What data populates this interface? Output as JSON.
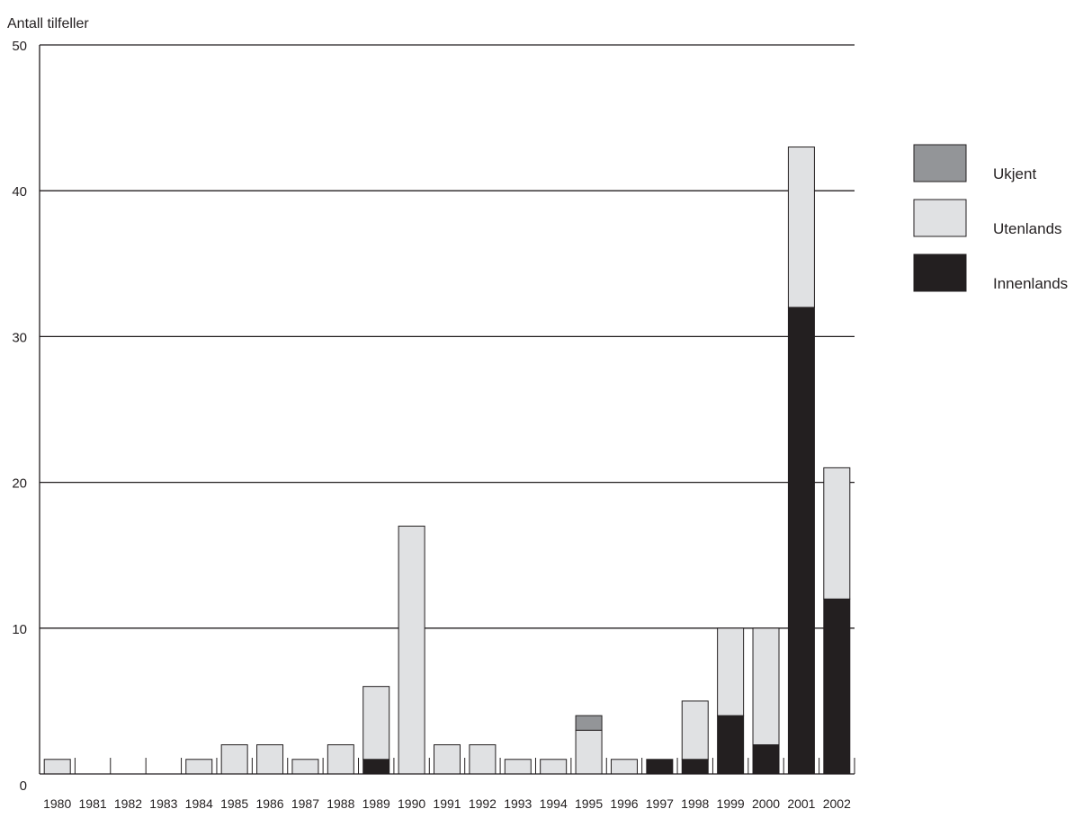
{
  "chart_data": {
    "type": "bar",
    "stacked": true,
    "ylabel": "Antall tilfeller",
    "ylim": [
      0,
      50
    ],
    "yticks": [
      0,
      10,
      20,
      30,
      40,
      50
    ],
    "grid": true,
    "legend_position": "right",
    "categories": [
      "1980",
      "1981",
      "1982",
      "1983",
      "1984",
      "1985",
      "1986",
      "1987",
      "1988",
      "1989",
      "1990",
      "1991",
      "1992",
      "1993",
      "1994",
      "1995",
      "1996",
      "1997",
      "1998",
      "1999",
      "2000",
      "2001",
      "2002"
    ],
    "series": [
      {
        "name": "Innenlands",
        "color": "#231f20",
        "values": [
          0,
          0,
          0,
          0,
          0,
          0,
          0,
          0,
          0,
          1,
          0,
          0,
          0,
          0,
          0,
          0,
          0,
          1,
          1,
          4,
          2,
          32,
          12
        ]
      },
      {
        "name": "Utenlands",
        "color": "#e0e1e3",
        "values": [
          1,
          0,
          0,
          0,
          1,
          2,
          2,
          1,
          2,
          5,
          17,
          2,
          2,
          1,
          1,
          3,
          1,
          0,
          4,
          6,
          8,
          11,
          9
        ]
      },
      {
        "name": "Ukjent",
        "color": "#939598",
        "values": [
          0,
          0,
          0,
          0,
          0,
          0,
          0,
          0,
          0,
          0,
          0,
          0,
          0,
          0,
          0,
          1,
          0,
          0,
          0,
          0,
          0,
          0,
          0
        ]
      }
    ],
    "legend_order": [
      "Ukjent",
      "Utenlands",
      "Innenlands"
    ]
  }
}
